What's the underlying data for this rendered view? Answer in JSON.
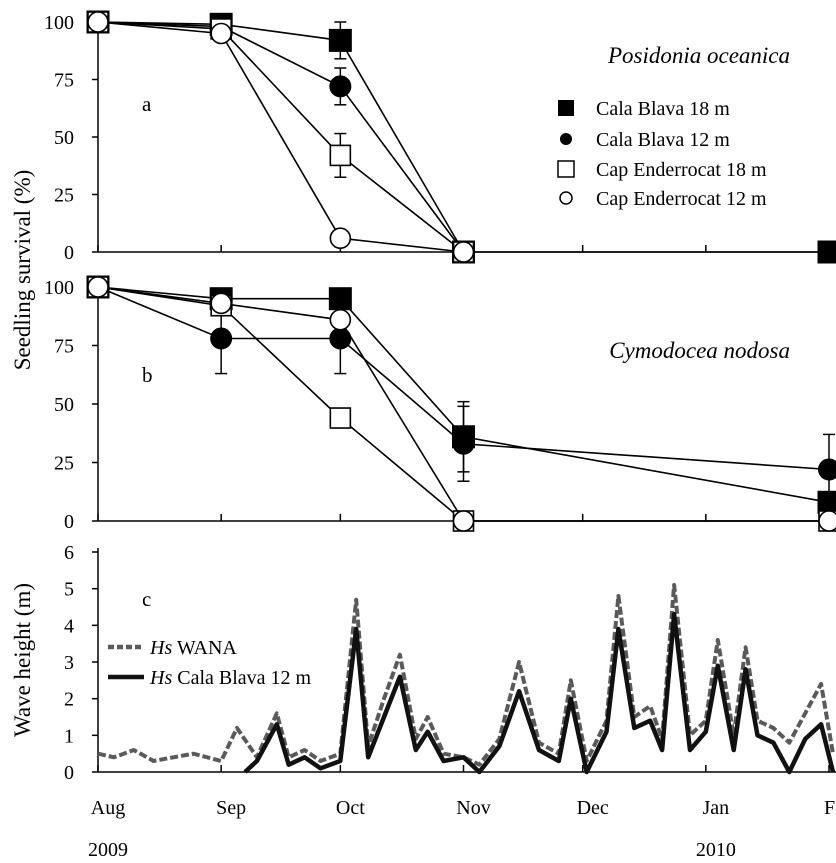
{
  "chart_data": [
    {
      "type": "line",
      "panel": "a",
      "title": "Posidonia oceanica",
      "ylabel": "Seedling survival (%)",
      "ylim": [
        0,
        100
      ],
      "yticks": [
        "0",
        "25",
        "50",
        "75",
        "100"
      ],
      "series": [
        {
          "name": "Cala Blava 18 m",
          "marker": "filled-square",
          "x": [
            "2009-08-01",
            "2009-09-01",
            "2009-10-01",
            "2009-11-01",
            "2010-02-01"
          ],
          "y": [
            100,
            99,
            92,
            0,
            0
          ],
          "err": [
            0,
            2,
            8,
            0,
            0
          ]
        },
        {
          "name": "Cala Blava 12 m",
          "marker": "filled-circle",
          "x": [
            "2009-08-01",
            "2009-09-01",
            "2009-10-01",
            "2009-11-01"
          ],
          "y": [
            100,
            98,
            72,
            0
          ],
          "err": [
            0,
            2,
            8,
            0
          ]
        },
        {
          "name": "Cap Enderrocat 18 m",
          "marker": "open-square",
          "x": [
            "2009-08-01",
            "2009-09-01",
            "2009-10-01",
            "2009-11-01"
          ],
          "y": [
            100,
            97,
            42,
            0
          ],
          "err": [
            0,
            2,
            9.5,
            0
          ]
        },
        {
          "name": "Cap Enderrocat 12 m",
          "marker": "open-circle",
          "x": [
            "2009-08-01",
            "2009-09-01",
            "2009-10-01",
            "2009-11-01"
          ],
          "y": [
            100,
            95,
            6,
            0
          ],
          "err": [
            0,
            2,
            0,
            0
          ]
        }
      ],
      "legend": "right"
    },
    {
      "type": "line",
      "panel": "b",
      "title": "Cymodocea nodosa",
      "ylim": [
        0,
        100
      ],
      "yticks": [
        "0",
        "25",
        "50",
        "75",
        "100"
      ],
      "series": [
        {
          "marker": "filled-square",
          "x": [
            "2009-08-01",
            "2009-09-01",
            "2009-10-01",
            "2009-11-01",
            "2010-02-01"
          ],
          "y": [
            100,
            95,
            95,
            36,
            8
          ],
          "err": [
            0,
            2,
            2,
            15,
            0
          ]
        },
        {
          "marker": "filled-circle",
          "x": [
            "2009-08-01",
            "2009-09-01",
            "2009-10-01",
            "2009-11-01",
            "2010-02-01"
          ],
          "y": [
            100,
            78,
            78,
            33,
            22
          ],
          "err": [
            0,
            15,
            15,
            16,
            15
          ]
        },
        {
          "marker": "open-square",
          "x": [
            "2009-08-01",
            "2009-09-01",
            "2009-10-01",
            "2009-11-01",
            "2010-02-01"
          ],
          "y": [
            100,
            92,
            44,
            0,
            0
          ],
          "err": [
            0,
            3,
            0,
            0,
            0
          ]
        },
        {
          "marker": "open-circle",
          "x": [
            "2009-08-01",
            "2009-09-01",
            "2009-10-01",
            "2009-11-01",
            "2010-02-01"
          ],
          "y": [
            100,
            93,
            86,
            0,
            0
          ],
          "err": [
            0,
            2,
            3,
            0,
            0
          ]
        }
      ]
    },
    {
      "type": "line",
      "panel": "c",
      "ylabel": "Wave height (m)",
      "ylim": [
        0,
        6
      ],
      "yticks": [
        "0",
        "1",
        "2",
        "3",
        "4",
        "5",
        "6"
      ],
      "legend": "left",
      "series": [
        {
          "name_prefix": "Hs",
          "name": "WANA",
          "color": "#5a5a5a",
          "style": "dashed",
          "x": [
            "2009-08-01",
            "2009-08-05",
            "2009-08-10",
            "2009-08-15",
            "2009-08-20",
            "2009-08-25",
            "2009-09-01",
            "2009-09-05",
            "2009-09-10",
            "2009-09-15",
            "2009-09-18",
            "2009-09-22",
            "2009-09-26",
            "2009-10-01",
            "2009-10-05",
            "2009-10-08",
            "2009-10-12",
            "2009-10-16",
            "2009-10-20",
            "2009-10-23",
            "2009-10-27",
            "2009-11-01",
            "2009-11-05",
            "2009-11-10",
            "2009-11-15",
            "2009-11-20",
            "2009-11-25",
            "2009-11-28",
            "2009-12-02",
            "2009-12-07",
            "2009-12-10",
            "2009-12-14",
            "2009-12-18",
            "2009-12-21",
            "2009-12-24",
            "2009-12-28",
            "2010-01-01",
            "2010-01-04",
            "2010-01-08",
            "2010-01-11",
            "2010-01-14",
            "2010-01-18",
            "2010-01-22",
            "2010-01-26",
            "2010-01-30",
            "2010-02-02"
          ],
          "y": [
            0.5,
            0.4,
            0.6,
            0.3,
            0.4,
            0.5,
            0.3,
            1.2,
            0.4,
            1.6,
            0.4,
            0.6,
            0.3,
            0.5,
            4.7,
            0.7,
            2.0,
            3.2,
            0.9,
            1.5,
            0.5,
            0.4,
            0.2,
            0.9,
            3.0,
            0.8,
            0.5,
            2.5,
            0.3,
            1.4,
            4.8,
            1.5,
            1.8,
            0.9,
            5.1,
            1.0,
            1.4,
            3.6,
            1.0,
            3.4,
            1.4,
            1.2,
            0.8,
            1.6,
            2.4,
            0.5
          ]
        },
        {
          "name_prefix": "Hs",
          "name": "Cala Blava 12 m",
          "color": "#111111",
          "style": "solid",
          "x": [
            "2009-09-07",
            "2009-09-10",
            "2009-09-15",
            "2009-09-18",
            "2009-09-22",
            "2009-09-26",
            "2009-10-01",
            "2009-10-05",
            "2009-10-08",
            "2009-10-12",
            "2009-10-16",
            "2009-10-20",
            "2009-10-23",
            "2009-10-27",
            "2009-11-01",
            "2009-11-05",
            "2009-11-10",
            "2009-11-15",
            "2009-11-20",
            "2009-11-25",
            "2009-11-28",
            "2009-12-02",
            "2009-12-07",
            "2009-12-10",
            "2009-12-14",
            "2009-12-18",
            "2009-12-21",
            "2009-12-24",
            "2009-12-28",
            "2010-01-01",
            "2010-01-04",
            "2010-01-08",
            "2010-01-11",
            "2010-01-14",
            "2010-01-18",
            "2010-01-22",
            "2010-01-26",
            "2010-01-30",
            "2010-02-02"
          ],
          "y": [
            0.0,
            0.3,
            1.3,
            0.2,
            0.4,
            0.1,
            0.3,
            3.9,
            0.4,
            1.5,
            2.6,
            0.6,
            1.1,
            0.3,
            0.4,
            0.0,
            0.7,
            2.2,
            0.6,
            0.3,
            2.0,
            0.0,
            1.1,
            3.9,
            1.2,
            1.4,
            0.6,
            4.3,
            0.6,
            1.1,
            2.9,
            0.6,
            2.8,
            1.0,
            0.8,
            0.0,
            0.9,
            1.3,
            0.0
          ]
        }
      ],
      "xticks": [
        {
          "x": "2009-08-01",
          "label": "Aug",
          "year": "2009"
        },
        {
          "x": "2009-09-01",
          "label": "Sep"
        },
        {
          "x": "2009-10-01",
          "label": "Oct"
        },
        {
          "x": "2009-11-01",
          "label": "Nov"
        },
        {
          "x": "2009-12-01",
          "label": "Dec"
        },
        {
          "x": "2010-01-01",
          "label": "Jan",
          "year": "2010"
        },
        {
          "x": "2010-02-01",
          "label": "Feb"
        }
      ],
      "xlim": [
        "2009-08-01",
        "2010-02-01"
      ]
    }
  ]
}
